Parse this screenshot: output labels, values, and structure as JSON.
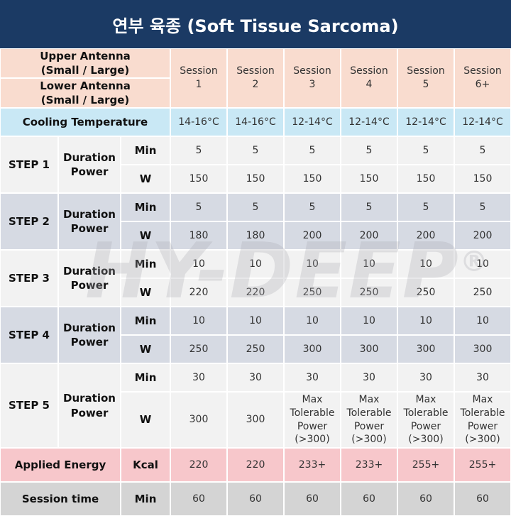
{
  "header": {
    "title": "연부 육종 (Soft Tissue Sarcoma)"
  },
  "table": {
    "antenna": [
      "Upper Antenna (Small / Large)",
      "Lower Antenna (Small / Large)"
    ],
    "sessions": [
      "Session 1",
      "Session 2",
      "Session 3",
      "Session 4",
      "Session 5",
      "Session 6+"
    ],
    "cooling": {
      "label": "Cooling Temperature",
      "values": [
        "14-16°C",
        "14-16°C",
        "12-14°C",
        "12-14°C",
        "12-14°C",
        "12-14°C"
      ]
    },
    "steps": [
      {
        "label": "STEP 1",
        "param": "Duration Power",
        "rows": [
          {
            "unit": "Min",
            "values": [
              5,
              5,
              5,
              5,
              5,
              5
            ]
          },
          {
            "unit": "W",
            "values": [
              150,
              150,
              150,
              150,
              150,
              150
            ]
          }
        ]
      },
      {
        "label": "STEP 2",
        "param": "Duration Power",
        "rows": [
          {
            "unit": "Min",
            "values": [
              5,
              5,
              5,
              5,
              5,
              5
            ]
          },
          {
            "unit": "W",
            "values": [
              180,
              180,
              200,
              200,
              200,
              200
            ]
          }
        ]
      },
      {
        "label": "STEP 3",
        "param": "Duration Power",
        "rows": [
          {
            "unit": "Min",
            "values": [
              10,
              10,
              10,
              10,
              10,
              10
            ]
          },
          {
            "unit": "W",
            "values": [
              220,
              220,
              250,
              250,
              250,
              250
            ]
          }
        ]
      },
      {
        "label": "STEP 4",
        "param": "Duration Power",
        "rows": [
          {
            "unit": "Min",
            "values": [
              10,
              10,
              10,
              10,
              10,
              10
            ]
          },
          {
            "unit": "W",
            "values": [
              250,
              250,
              300,
              300,
              300,
              300
            ]
          }
        ]
      },
      {
        "label": "STEP 5",
        "param": "Duration Power",
        "rows": [
          {
            "unit": "Min",
            "values": [
              30,
              30,
              30,
              30,
              30,
              30
            ]
          },
          {
            "unit": "W",
            "values": [
              300,
              300,
              "Max Tolerable Power (>300)",
              "Max Tolerable Power (>300)",
              "Max Tolerable Power (>300)",
              "Max Tolerable Power (>300)"
            ]
          }
        ]
      }
    ],
    "applied_energy": {
      "label": "Applied Energy",
      "unit": "Kcal",
      "values": [
        "220",
        "220",
        "233+",
        "233+",
        "255+",
        "255+"
      ]
    },
    "session_time": {
      "label": "Session time",
      "unit": "Min",
      "values": [
        60,
        60,
        60,
        60,
        60,
        60
      ]
    }
  },
  "watermark": {
    "text": "HY-DEEP",
    "mark": "®"
  }
}
